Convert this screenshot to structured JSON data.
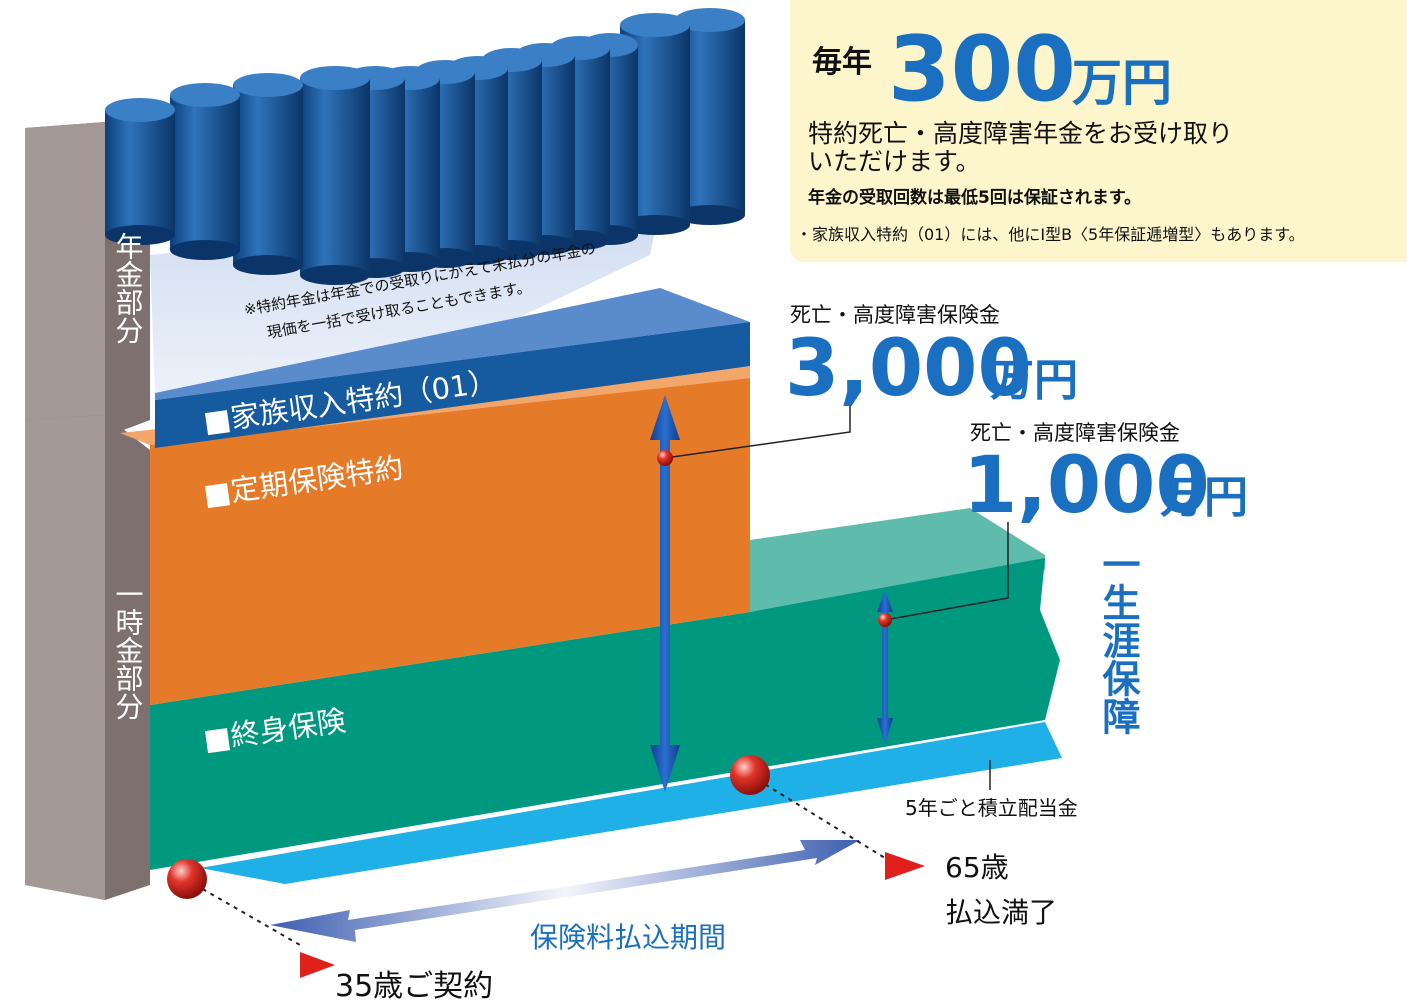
{
  "annuity_box": {
    "prefix": "毎年",
    "amount": "300",
    "unit": "万円",
    "lines": [
      "特約死亡・高度障害年金をお受け取り",
      "いただけます。"
    ],
    "note": "年金の受取回数は最低5回は保証されます。",
    "footnote": "・家族収入特約（01）には、他にI型B〈5年保証逓増型〉もあります。"
  },
  "payouts": [
    {
      "label": "死亡・高度障害保険金",
      "amount": "3,000",
      "unit": "万円"
    },
    {
      "label": "死亡・高度障害保険金",
      "amount": "1,000",
      "unit": "万円"
    }
  ],
  "layers": [
    "■家族収入特約（01）",
    "■定期保険特約",
    "■終身保険"
  ],
  "side_labels": [
    "年金部分",
    "一時金部分"
  ],
  "annuity_note": [
    "※特約年金は年金での受取りにかえて未払分の年金の",
    "現価を一括で受け取ることもできます。"
  ],
  "lifetime": "一生涯保障",
  "dividend": "5年ごと積立配当金",
  "timeline": {
    "start": "35歳ご契約",
    "end": [
      "65歳",
      "払込満了"
    ],
    "period": "保険料払込期間"
  }
}
